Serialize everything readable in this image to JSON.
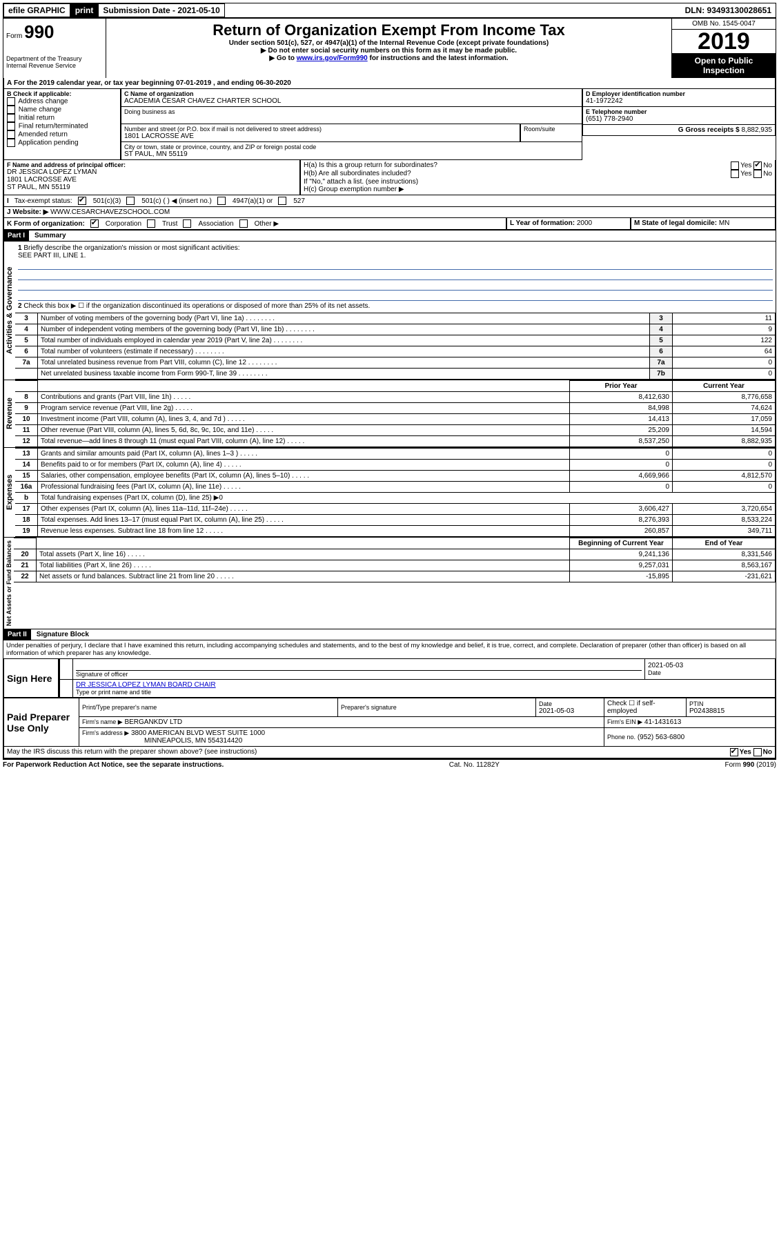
{
  "topbar": {
    "efile_label": "efile GRAPHIC",
    "print_label": "print",
    "submission_label": "Submission Date - 2021-05-10",
    "dln_label": "DLN: 93493130028651"
  },
  "header": {
    "form_prefix": "Form",
    "form_number": "990",
    "dept": "Department of the Treasury Internal Revenue Service",
    "title": "Return of Organization Exempt From Income Tax",
    "subtitle1": "Under section 501(c), 527, or 4947(a)(1) of the Internal Revenue Code (except private foundations)",
    "subtitle2": "▶ Do not enter social security numbers on this form as it may be made public.",
    "subtitle3_pre": "▶ Go to ",
    "subtitle3_link": "www.irs.gov/Form990",
    "subtitle3_post": " for instructions and the latest information.",
    "omb": "OMB No. 1545-0047",
    "year": "2019",
    "open_public": "Open to Public Inspection"
  },
  "lineA": {
    "text": "For the 2019 calendar year, or tax year beginning 07-01-2019     , and ending 06-30-2020"
  },
  "boxB": {
    "label": "B Check if applicable:",
    "items": [
      "Address change",
      "Name change",
      "Initial return",
      "Final return/terminated",
      "Amended return",
      "Application pending"
    ]
  },
  "boxC": {
    "label": "C Name of organization",
    "name": "ACADEMIA CESAR CHAVEZ CHARTER SCHOOL",
    "dba_label": "Doing business as",
    "addr_label": "Number and street (or P.O. box if mail is not delivered to street address)",
    "room_label": "Room/suite",
    "addr": "1801 LACROSSE AVE",
    "city_label": "City or town, state or province, country, and ZIP or foreign postal code",
    "city": "ST PAUL, MN  55119"
  },
  "boxD": {
    "label": "D Employer identification number",
    "value": "41-1972242"
  },
  "boxE": {
    "label": "E Telephone number",
    "value": "(651) 778-2940"
  },
  "boxG": {
    "label": "G Gross receipts $",
    "value": "8,882,935"
  },
  "boxF": {
    "label": "F Name and address of principal officer:",
    "line1": "DR JESSICA LOPEZ LYMAN",
    "line2": "1801 LACROSSE AVE",
    "line3": "ST PAUL, MN  55119"
  },
  "boxH": {
    "ha_label": "H(a)  Is this a group return for subordinates?",
    "hb_label": "H(b)  Are all subordinates included?",
    "hb_note": "If \"No,\" attach a list. (see instructions)",
    "hc_label": "H(c)  Group exemption number ▶"
  },
  "taxExempt": {
    "label": "Tax-exempt status:",
    "c3": "501(c)(3)",
    "c_other": "501(c) (  ) ◀ (insert no.)",
    "a4947": "4947(a)(1) or",
    "s527": "527"
  },
  "website": {
    "label": "Website: ▶",
    "value": "WWW.CESARCHAVEZSCHOOL.COM"
  },
  "lineK": {
    "label": "K Form of organization:",
    "opts": [
      "Corporation",
      "Trust",
      "Association",
      "Other ▶"
    ]
  },
  "lineL": {
    "label": "L Year of formation:",
    "value": "2000"
  },
  "lineM": {
    "label": "M State of legal domicile:",
    "value": "MN"
  },
  "parts": {
    "part1": "Part I",
    "part1_title": "Summary",
    "part2": "Part II",
    "part2_title": "Signature Block"
  },
  "sections": {
    "gov": "Activities & Governance",
    "rev": "Revenue",
    "exp": "Expenses",
    "net": "Net Assets or Fund Balances"
  },
  "summary": {
    "line1_label": "Briefly describe the organization's mission or most significant activities:",
    "line1_text": "SEE PART III, LINE 1.",
    "line2_label": "Check this box ▶ ☐  if the organization discontinued its operations or disposed of more than 25% of its net assets.",
    "prior_year": "Prior Year",
    "current_year": "Current Year",
    "begin_year": "Beginning of Current Year",
    "end_year": "End of Year",
    "rows_gov": [
      {
        "n": "3",
        "d": "Number of voting members of the governing body (Part VI, line 1a)",
        "c": "3",
        "v": "11"
      },
      {
        "n": "4",
        "d": "Number of independent voting members of the governing body (Part VI, line 1b)",
        "c": "4",
        "v": "9"
      },
      {
        "n": "5",
        "d": "Total number of individuals employed in calendar year 2019 (Part V, line 2a)",
        "c": "5",
        "v": "122"
      },
      {
        "n": "6",
        "d": "Total number of volunteers (estimate if necessary)",
        "c": "6",
        "v": "64"
      },
      {
        "n": "7a",
        "d": "Total unrelated business revenue from Part VIII, column (C), line 12",
        "c": "7a",
        "v": "0"
      },
      {
        "n": "",
        "d": "Net unrelated business taxable income from Form 990-T, line 39",
        "c": "7b",
        "v": "0"
      }
    ],
    "rows_rev": [
      {
        "n": "8",
        "d": "Contributions and grants (Part VIII, line 1h)",
        "p": "8,412,630",
        "c": "8,776,658"
      },
      {
        "n": "9",
        "d": "Program service revenue (Part VIII, line 2g)",
        "p": "84,998",
        "c": "74,624"
      },
      {
        "n": "10",
        "d": "Investment income (Part VIII, column (A), lines 3, 4, and 7d )",
        "p": "14,413",
        "c": "17,059"
      },
      {
        "n": "11",
        "d": "Other revenue (Part VIII, column (A), lines 5, 6d, 8c, 9c, 10c, and 11e)",
        "p": "25,209",
        "c": "14,594"
      },
      {
        "n": "12",
        "d": "Total revenue—add lines 8 through 11 (must equal Part VIII, column (A), line 12)",
        "p": "8,537,250",
        "c": "8,882,935"
      }
    ],
    "rows_exp": [
      {
        "n": "13",
        "d": "Grants and similar amounts paid (Part IX, column (A), lines 1–3 )",
        "p": "0",
        "c": "0"
      },
      {
        "n": "14",
        "d": "Benefits paid to or for members (Part IX, column (A), line 4)",
        "p": "0",
        "c": "0"
      },
      {
        "n": "15",
        "d": "Salaries, other compensation, employee benefits (Part IX, column (A), lines 5–10)",
        "p": "4,669,966",
        "c": "4,812,570"
      },
      {
        "n": "16a",
        "d": "Professional fundraising fees (Part IX, column (A), line 11e)",
        "p": "0",
        "c": "0"
      },
      {
        "n": "b",
        "d": "Total fundraising expenses (Part IX, column (D), line 25) ▶0",
        "p": "",
        "c": ""
      },
      {
        "n": "17",
        "d": "Other expenses (Part IX, column (A), lines 11a–11d, 11f–24e)",
        "p": "3,606,427",
        "c": "3,720,654"
      },
      {
        "n": "18",
        "d": "Total expenses. Add lines 13–17 (must equal Part IX, column (A), line 25)",
        "p": "8,276,393",
        "c": "8,533,224"
      },
      {
        "n": "19",
        "d": "Revenue less expenses. Subtract line 18 from line 12",
        "p": "260,857",
        "c": "349,711"
      }
    ],
    "rows_net": [
      {
        "n": "20",
        "d": "Total assets (Part X, line 16)",
        "p": "9,241,136",
        "c": "8,331,546"
      },
      {
        "n": "21",
        "d": "Total liabilities (Part X, line 26)",
        "p": "9,257,031",
        "c": "8,563,167"
      },
      {
        "n": "22",
        "d": "Net assets or fund balances. Subtract line 21 from line 20",
        "p": "-15,895",
        "c": "-231,621"
      }
    ]
  },
  "sig": {
    "perjury": "Under penalties of perjury, I declare that I have examined this return, including accompanying schedules and statements, and to the best of my knowledge and belief, it is true, correct, and complete. Declaration of preparer (other than officer) is based on all information of which preparer has any knowledge.",
    "sign_here": "Sign Here",
    "sig_officer": "Signature of officer",
    "sig_date": "2021-05-03",
    "date_label": "Date",
    "officer_name": "DR JESSICA LOPEZ LYMAN  BOARD CHAIR",
    "officer_type": "Type or print name and title",
    "paid": "Paid Preparer Use Only",
    "prep_name_label": "Print/Type preparer's name",
    "prep_sig_label": "Preparer's signature",
    "prep_date": "2021-05-03",
    "check_label": "Check ☐ if self-employed",
    "ptin_label": "PTIN",
    "ptin": "P02438815",
    "firm_name_label": "Firm's name    ▶",
    "firm_name": "BERGANKDV LTD",
    "firm_ein_label": "Firm's EIN ▶",
    "firm_ein": "41-1431613",
    "firm_addr_label": "Firm's address ▶",
    "firm_addr": "3800 AMERICAN BLVD WEST SUITE 1000",
    "firm_city": "MINNEAPOLIS, MN  554314420",
    "phone_label": "Phone no.",
    "phone": "(952) 563-6800",
    "discuss": "May the IRS discuss this return with the preparer shown above? (see instructions)",
    "yes": "Yes",
    "no": "No"
  },
  "footer": {
    "pra": "For Paperwork Reduction Act Notice, see the separate instructions.",
    "cat": "Cat. No. 11282Y",
    "form": "Form 990 (2019)"
  }
}
